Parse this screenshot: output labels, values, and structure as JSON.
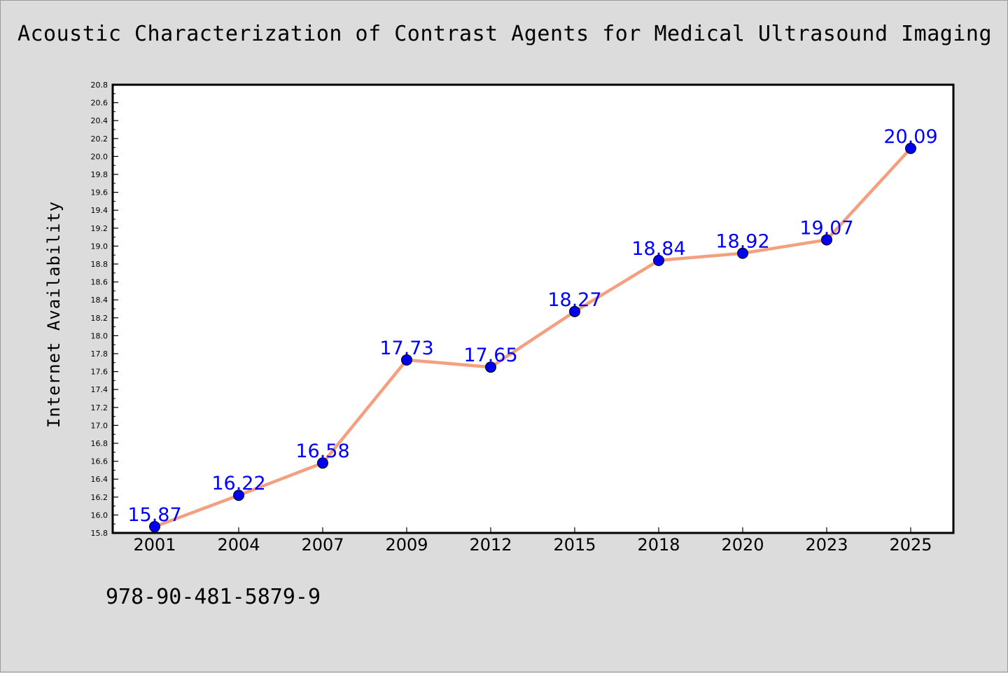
{
  "chart_data": {
    "type": "line",
    "title": "Acoustic Characterization of Contrast Agents for Medical Ultrasound Imaging",
    "xlabel": "",
    "ylabel": "Internet Availability",
    "categories": [
      "2001",
      "2004",
      "2007",
      "2009",
      "2012",
      "2015",
      "2018",
      "2020",
      "2023",
      "2025"
    ],
    "series": [
      {
        "values": [
          15.87,
          16.22,
          16.58,
          17.73,
          17.65,
          18.27,
          18.84,
          18.92,
          19.07,
          20.09
        ],
        "data_labels": [
          "15.87",
          "16.22",
          "16.58",
          "17.73",
          "17.65",
          "18.27",
          "18.84",
          "18.92",
          "19.07",
          "20.09"
        ]
      }
    ],
    "ylim": [
      15.8,
      20.8
    ],
    "yticks": [
      "15.8",
      "16.0",
      "16.2",
      "16.4",
      "16.6",
      "16.8",
      "17.0",
      "17.2",
      "17.4",
      "17.6",
      "17.8",
      "18.0",
      "18.2",
      "18.4",
      "18.6",
      "18.8",
      "19.0",
      "19.2",
      "19.4",
      "19.6",
      "19.8",
      "20.0",
      "20.2",
      "20.4",
      "20.6",
      "20.8"
    ],
    "grid": false,
    "legend": "none",
    "colors": {
      "line": "#f4a07e",
      "marker": "#0000ee",
      "data_label": "#0000ff",
      "plot_background": "#ffffff",
      "figure_background": "#dcdcdc"
    }
  },
  "footer": {
    "code": "978-90-481-5879-9"
  }
}
